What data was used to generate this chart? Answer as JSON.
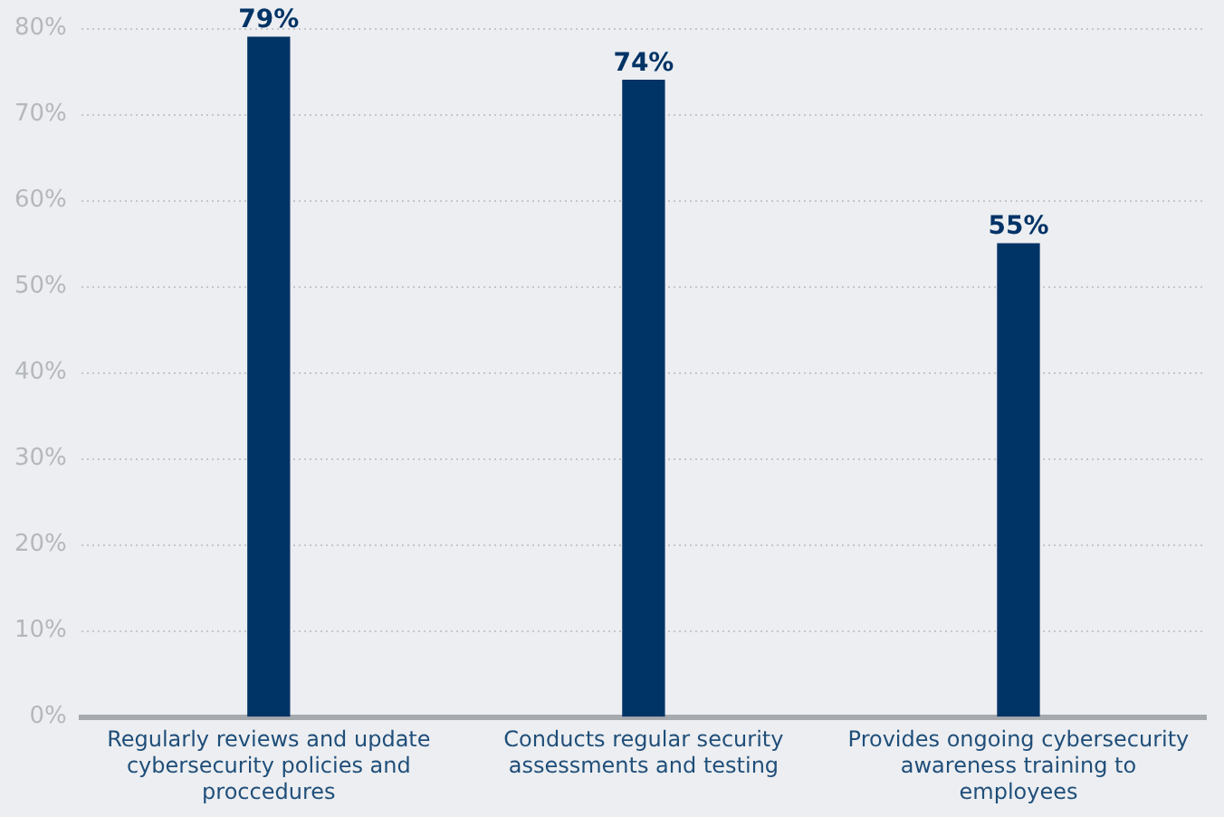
{
  "chart_data": {
    "type": "bar",
    "categories": [
      "Regularly reviews and update cybersecurity policies and proccedures",
      "Conducts regular security assessments and testing",
      "Provides ongoing cybersecurity awareness training to employees"
    ],
    "values": [
      79,
      74,
      55
    ],
    "value_labels": [
      "79%",
      "74%",
      "55%"
    ],
    "color": "#003366",
    "ylim": [
      0,
      80
    ],
    "yticks": [
      {
        "value": 0,
        "label": "0%"
      },
      {
        "value": 10,
        "label": "10%"
      },
      {
        "value": 20,
        "label": "20%"
      },
      {
        "value": 30,
        "label": "30%"
      },
      {
        "value": 40,
        "label": "40%"
      },
      {
        "value": 50,
        "label": "50%"
      },
      {
        "value": 60,
        "label": "60%"
      },
      {
        "value": 70,
        "label": "70%"
      },
      {
        "value": 80,
        "label": "80%"
      }
    ],
    "grid": "y"
  }
}
